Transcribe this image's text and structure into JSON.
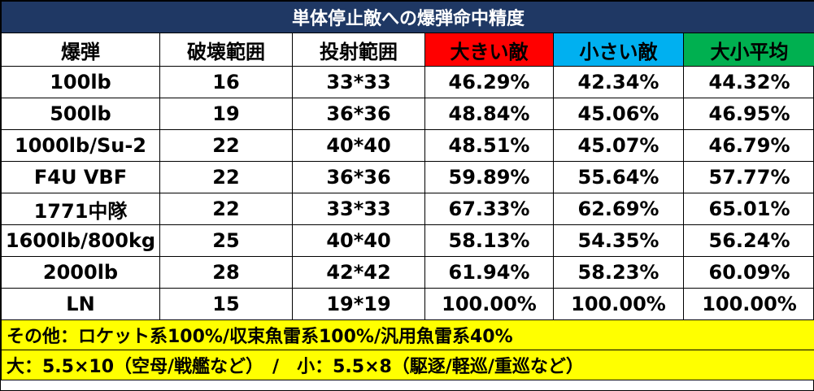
{
  "title": "単体停止敵への爆弾命中精度",
  "headers": [
    {
      "label": "爆弾",
      "bg": "#ffffff",
      "color": "#000000"
    },
    {
      "label": "破壊範囲",
      "bg": "#ffffff",
      "color": "#000000"
    },
    {
      "label": "投射範囲",
      "bg": "#ffffff",
      "color": "#000000"
    },
    {
      "label": "大きい敵",
      "bg": "#ff0000",
      "color": "#000000"
    },
    {
      "label": "小さい敵",
      "bg": "#00b0f0",
      "color": "#000000"
    },
    {
      "label": "大小平均",
      "bg": "#00b050",
      "color": "#000000"
    }
  ],
  "rows": [
    [
      "100lb",
      "16",
      "33*33",
      "46.29%",
      "42.34%",
      "44.32%"
    ],
    [
      "500lb",
      "19",
      "36*36",
      "48.84%",
      "45.06%",
      "46.95%"
    ],
    [
      "1000lb/Su-2",
      "22",
      "40*40",
      "48.51%",
      "45.07%",
      "46.79%"
    ],
    [
      "F4U VBF",
      "22",
      "36*36",
      "59.89%",
      "55.64%",
      "57.77%"
    ],
    [
      "1771中隊",
      "22",
      "33*33",
      "67.33%",
      "62.69%",
      "65.01%"
    ],
    [
      "1600lb/800kg",
      "25",
      "40*40",
      "58.13%",
      "54.35%",
      "56.24%"
    ],
    [
      "2000lb",
      "28",
      "42*42",
      "61.94%",
      "58.23%",
      "60.09%"
    ],
    [
      "LN",
      "15",
      "19*19",
      "100.00%",
      "100.00%",
      "100.00%"
    ]
  ],
  "notes": [
    "その他：ロケット系100%/収束魚雷系100%/汎用魚雷系40%",
    "大：5.5×10（空母/戦艦など）　/　小：5.5×8（駆逐/軽巡/重巡など）"
  ],
  "colors": {
    "title_bg": "#1f3864",
    "note_bg": "#ffff00"
  }
}
